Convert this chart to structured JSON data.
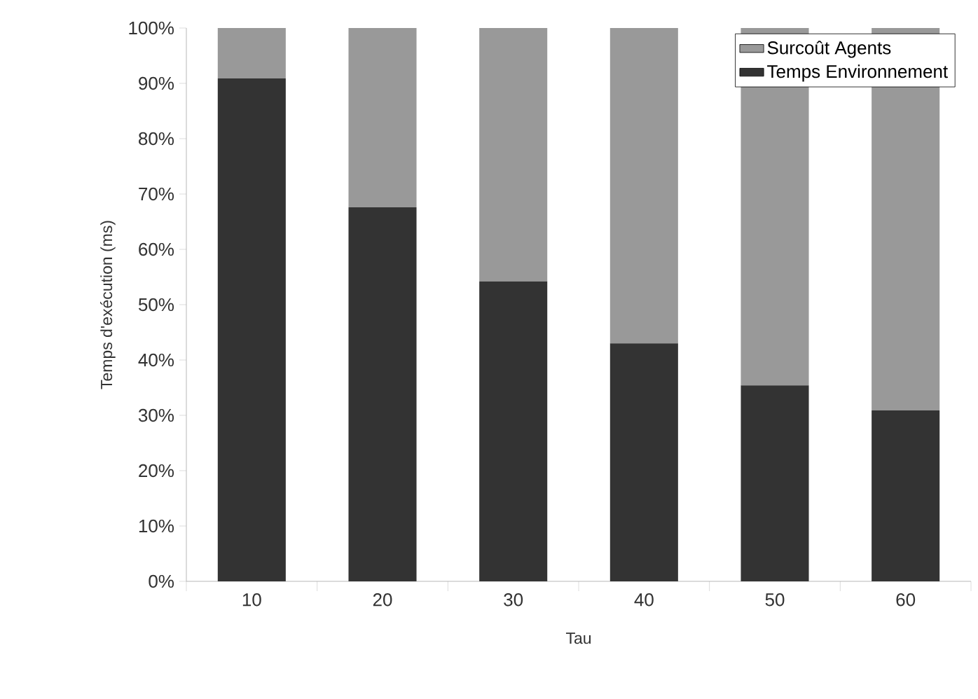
{
  "chart_data": {
    "type": "bar",
    "stacked": true,
    "xlabel": "Tau",
    "ylabel": "Temps d'exécution (ms)",
    "categories": [
      "10",
      "20",
      "30",
      "40",
      "50",
      "60"
    ],
    "series": [
      {
        "name": "Temps Environnement",
        "color": "#333333",
        "values": [
          90.9,
          67.6,
          54.2,
          43.0,
          35.4,
          30.9
        ]
      },
      {
        "name": "Surcoût Agents",
        "color": "#999999",
        "values": [
          9.1,
          32.4,
          45.8,
          57.0,
          64.6,
          69.1
        ]
      }
    ],
    "ylim": [
      0,
      100
    ],
    "yticks": [
      {
        "value": 0,
        "label": "0%"
      },
      {
        "value": 10,
        "label": "10%"
      },
      {
        "value": 20,
        "label": "20%"
      },
      {
        "value": 30,
        "label": "30%"
      },
      {
        "value": 40,
        "label": "40%"
      },
      {
        "value": 50,
        "label": "50%"
      },
      {
        "value": 60,
        "label": "60%"
      },
      {
        "value": 70,
        "label": "70%"
      },
      {
        "value": 80,
        "label": "80%"
      },
      {
        "value": 90,
        "label": "90%"
      },
      {
        "value": 100,
        "label": "100%"
      }
    ],
    "grid": false,
    "legend": "top right"
  }
}
